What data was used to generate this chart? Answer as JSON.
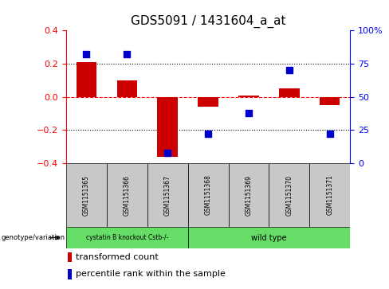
{
  "title": "GDS5091 / 1431604_a_at",
  "categories": [
    "GSM1151365",
    "GSM1151366",
    "GSM1151367",
    "GSM1151368",
    "GSM1151369",
    "GSM1151370",
    "GSM1151371"
  ],
  "red_values": [
    0.21,
    0.1,
    -0.36,
    -0.06,
    0.01,
    0.05,
    -0.05
  ],
  "blue_values": [
    82,
    82,
    8,
    22,
    38,
    70,
    22
  ],
  "ylim_left": [
    -0.4,
    0.4
  ],
  "ylim_right": [
    0,
    100
  ],
  "yticks_left": [
    -0.4,
    -0.2,
    0.0,
    0.2,
    0.4
  ],
  "yticks_right": [
    0,
    25,
    50,
    75,
    100
  ],
  "ytick_labels_right": [
    "0",
    "25",
    "50",
    "75",
    "100%"
  ],
  "hlines": [
    {
      "val": -0.2,
      "style": "dotted",
      "color": "black"
    },
    {
      "val": 0.0,
      "style": "dashed",
      "color": "red"
    },
    {
      "val": 0.2,
      "style": "dotted",
      "color": "black"
    }
  ],
  "group1_label": "cystatin B knockout Cstb-/-",
  "group2_label": "wild type",
  "group1_indices": [
    0,
    1,
    2
  ],
  "group2_indices": [
    3,
    4,
    5,
    6
  ],
  "group1_color": "#66DD66",
  "group2_color": "#66DD66",
  "bar_color": "#cc0000",
  "point_color": "#0000cc",
  "bar_width": 0.5,
  "point_size": 30,
  "legend_red_label": "transformed count",
  "legend_blue_label": "percentile rank within the sample",
  "genotype_label": "genotype/variation",
  "sample_box_color": "#c8c8c8",
  "title_fontsize": 11,
  "axis_fontsize": 8,
  "legend_fontsize": 8
}
